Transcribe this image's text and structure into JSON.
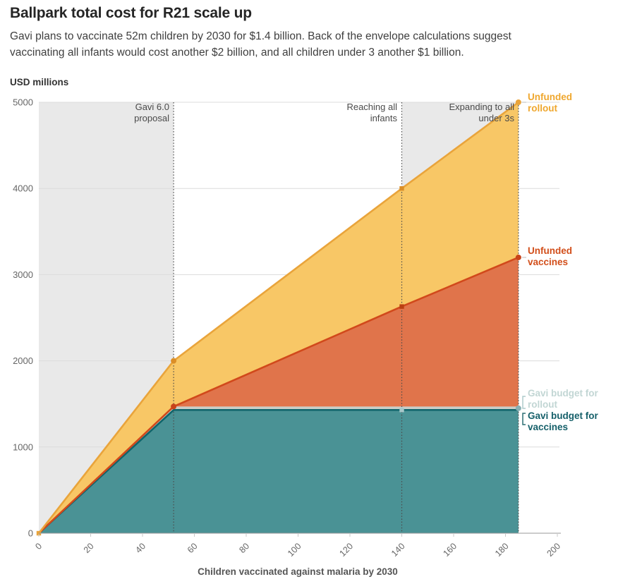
{
  "header": {
    "title": "Ballpark total cost for R21 scale up",
    "subtitle_lines": [
      "Gavi plans to vaccinate 52m children by 2030 for $1.4 billion. Back of the envelope calculations suggest",
      "vaccinating all infants would cost another $2 billion, and all children under 3 another $1 billion."
    ]
  },
  "series_labels": {
    "unfunded_rollout": {
      "lines": [
        "Unfunded",
        "rollout"
      ],
      "color": "#EFA72E"
    },
    "unfunded_vaccines": {
      "lines": [
        "Unfunded",
        "vaccines"
      ],
      "color": "#D24E1A"
    },
    "gavi_rollout": {
      "lines": [
        "Gavi budget for",
        "rollout"
      ],
      "color": "#C2D6D4"
    },
    "gavi_vaccines": {
      "lines": [
        "Gavi budget for",
        "vaccines"
      ],
      "color": "#16606A"
    }
  },
  "chart_data": {
    "type": "area",
    "stacking": "values are cumulative stacked tops, USD millions",
    "title": "Ballpark total cost for R21 scale up",
    "xlabel": "Children vaccinated against malaria by 2030",
    "ylabel": "USD millions",
    "xlim": [
      0,
      200
    ],
    "ylim": [
      0,
      5000
    ],
    "x_ticks": [
      0,
      20,
      40,
      60,
      80,
      100,
      120,
      140,
      160,
      180,
      200
    ],
    "y_ticks": [
      0,
      1000,
      2000,
      3000,
      4000,
      5000
    ],
    "grid": "horizontal only",
    "legend_position": "right edge annotations",
    "x": [
      0,
      52,
      140,
      185
    ],
    "series": [
      {
        "name": "Gavi budget for vaccines",
        "values": [
          0,
          1430,
          1430,
          1430
        ],
        "fill": "#4A9295",
        "line": "#10646A"
      },
      {
        "name": "Gavi budget for rollout",
        "values": [
          0,
          1470,
          1470,
          1470
        ],
        "fill": "#C8CDC7",
        "line": null
      },
      {
        "name": "Unfunded vaccines",
        "values": [
          0,
          1470,
          2630,
          3200
        ],
        "fill": "#E0744B",
        "line": "#D1491B"
      },
      {
        "name": "Unfunded rollout",
        "values": [
          0,
          2000,
          4000,
          5000
        ],
        "fill": "#F8C766",
        "line": "#E9A43B"
      }
    ],
    "vlines": [
      {
        "x": 52,
        "label": [
          "Gavi 6.0",
          "proposal"
        ]
      },
      {
        "x": 140,
        "label": [
          "Reaching all",
          "infants"
        ]
      },
      {
        "x": 185,
        "label": [
          "Expanding to all",
          "under 3s"
        ]
      }
    ],
    "shaded_x_bands": [
      [
        0,
        52
      ],
      [
        140,
        185
      ]
    ],
    "markers": [
      {
        "x": 0,
        "value": 0,
        "shape": "square",
        "color": "#E9A43B"
      },
      {
        "x": 52,
        "value": 2000,
        "shape": "circle",
        "color": "#DB8E27"
      },
      {
        "x": 52,
        "value": 1470,
        "shape": "circle",
        "color": "#C8431A"
      },
      {
        "x": 140,
        "value": 4000,
        "shape": "square",
        "color": "#DB8E27"
      },
      {
        "x": 140,
        "value": 2630,
        "shape": "square",
        "color": "#BA3F12"
      },
      {
        "x": 140,
        "value": 1430,
        "shape": "square",
        "color": "#A7C8CA"
      },
      {
        "x": 185,
        "value": 5000,
        "shape": "circle",
        "color": "#E9A43B"
      },
      {
        "x": 185,
        "value": 3200,
        "shape": "circle",
        "color": "#C8431A"
      },
      {
        "x": 185,
        "value": 1450,
        "shape": "circle",
        "color": "#87AFB3"
      }
    ],
    "colors": {
      "band": "#E9E9E9",
      "grid": "#DCDCDC",
      "axis": "#999999",
      "tick": "#C8C8C8",
      "tick_label": "#666666",
      "vline": "#4A4A4A",
      "connector": "#BBBBBB",
      "bracket_light": "#AECBCB",
      "bracket_dark": "#2C6E74"
    }
  }
}
